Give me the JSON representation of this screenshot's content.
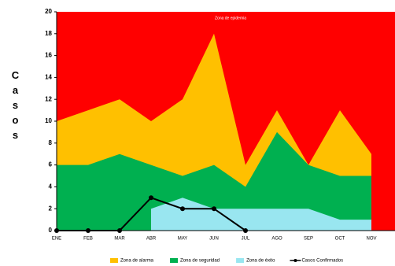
{
  "chart_data": {
    "type": "area",
    "y_label": "Casos",
    "annotation": "Zona de epidemia",
    "background_color": "#ff0000",
    "categories": [
      "ENE",
      "FEB",
      "MAR",
      "ABR",
      "MAY",
      "JUN",
      "JUL",
      "AGO",
      "SEP",
      "OCT",
      "NOV"
    ],
    "series": [
      {
        "name": "Zona de alarma",
        "color": "#ffc000",
        "kind": "area",
        "values": [
          10,
          11,
          12,
          10,
          12,
          18,
          6,
          11,
          6,
          11,
          7
        ]
      },
      {
        "name": "Zona de seguridad",
        "color": "#00b050",
        "kind": "area",
        "values": [
          6,
          6,
          7,
          6,
          5,
          6,
          4,
          9,
          6,
          5,
          5
        ]
      },
      {
        "name": "Zona de éxito",
        "color": "#99e6f0",
        "kind": "area",
        "values": [
          null,
          null,
          null,
          2,
          3,
          2,
          2,
          2,
          2,
          1,
          1
        ]
      },
      {
        "name": "Casos Confirmados",
        "color": "#000000",
        "kind": "line",
        "values": [
          0,
          0,
          0,
          3,
          2,
          2,
          0,
          null,
          null,
          null,
          null
        ]
      }
    ],
    "ylim": [
      0,
      20
    ],
    "yticks": [
      0,
      2,
      4,
      6,
      8,
      10,
      12,
      14,
      16,
      18,
      20
    ]
  }
}
